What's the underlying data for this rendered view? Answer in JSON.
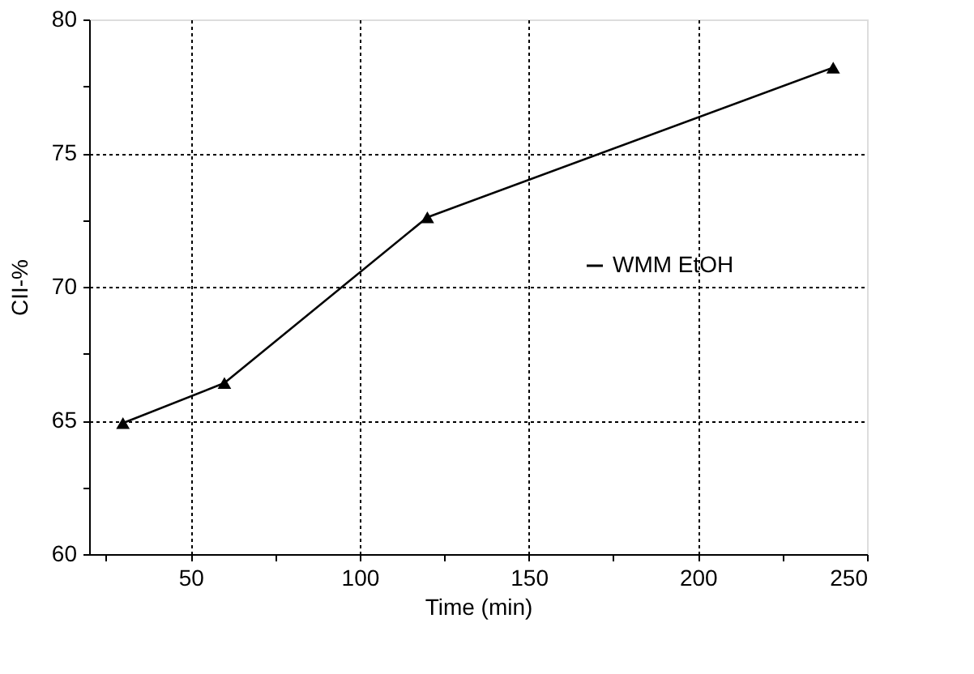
{
  "chart_data": {
    "type": "line",
    "xlabel": "Time (min)",
    "ylabel": "CII-%",
    "x": [
      30,
      60,
      120,
      240
    ],
    "series": [
      {
        "name": "WMM EtOH",
        "color": "#000000",
        "values": [
          64.9,
          66.4,
          72.6,
          78.2
        ]
      }
    ],
    "xlim": [
      20,
      250
    ],
    "xticks": [
      {
        "value": 25,
        "label": null
      },
      50,
      {
        "value": 75,
        "label": null
      },
      100,
      {
        "value": 125,
        "label": null
      },
      150,
      {
        "value": 175,
        "label": null
      },
      200,
      {
        "value": 225,
        "label": null
      },
      250
    ],
    "ylim": [
      60,
      80
    ],
    "yticks": [
      60,
      {
        "value": 62.5,
        "label": null
      },
      65,
      {
        "value": 67.5,
        "label": null
      },
      70,
      {
        "value": 72.5,
        "label": null
      },
      75,
      {
        "value": 77.5,
        "label": null
      },
      80
    ],
    "grid": true,
    "legend": "right",
    "marker": "triangle",
    "line_style": "solid"
  }
}
